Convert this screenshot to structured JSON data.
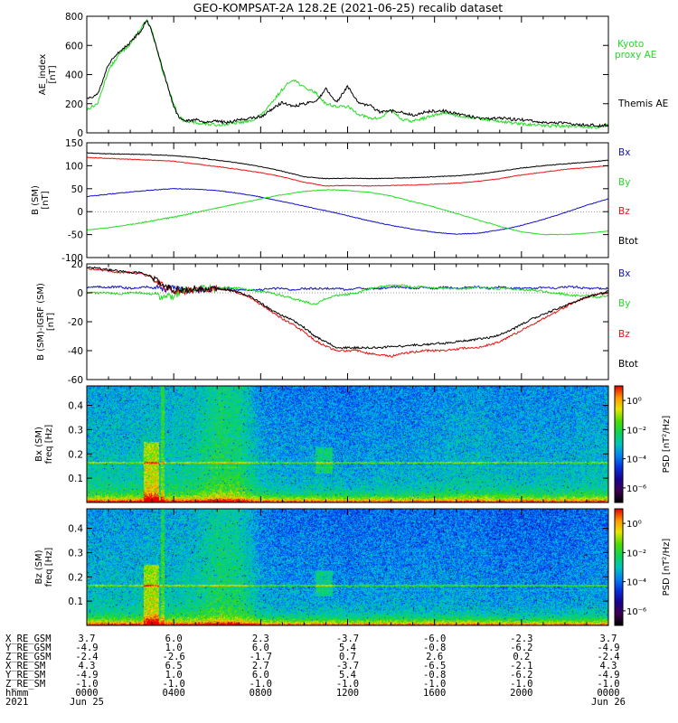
{
  "title": "GEO-KOMPSAT-2A 128.2E (2021-06-25) recalib dataset",
  "colors": {
    "black": "#000000",
    "green": "#22dd22",
    "blue": "#1111cc",
    "red": "#ee1111"
  },
  "chart_data": [
    {
      "type": "line",
      "ylabel": "AE_index\n[nT]",
      "ylim": [
        0,
        800
      ],
      "yticks": [
        "0",
        "200",
        "400",
        "600",
        "800"
      ],
      "x_hours": [
        0,
        0.5,
        1,
        1.5,
        2,
        2.5,
        2.75,
        3,
        3.5,
        4,
        4.25,
        4.5,
        5,
        5.5,
        6,
        6.5,
        7,
        7.5,
        8,
        8.5,
        9,
        9.5,
        10,
        10.5,
        11,
        11.5,
        12,
        12.5,
        13,
        13.5,
        14,
        14.5,
        15,
        15.5,
        16,
        16.5,
        17,
        17.5,
        18,
        18.5,
        19,
        19.5,
        20,
        20.5,
        21,
        21.5,
        22,
        22.5,
        23,
        23.5,
        24
      ],
      "series": [
        {
          "name": "Kyoto proxy AE",
          "color": "green",
          "values": [
            160,
            200,
            430,
            540,
            610,
            720,
            770,
            700,
            420,
            200,
            110,
            80,
            70,
            60,
            55,
            60,
            70,
            80,
            120,
            200,
            300,
            370,
            310,
            280,
            200,
            180,
            180,
            130,
            100,
            100,
            160,
            90,
            80,
            100,
            120,
            140,
            120,
            110,
            100,
            90,
            80,
            70,
            60,
            55,
            50,
            50,
            45,
            45,
            40,
            40,
            60
          ]
        },
        {
          "name": "Themis AE",
          "color": "black",
          "values": [
            240,
            260,
            470,
            560,
            620,
            700,
            780,
            690,
            430,
            180,
            100,
            80,
            90,
            70,
            80,
            70,
            90,
            100,
            110,
            160,
            210,
            180,
            200,
            210,
            300,
            210,
            320,
            200,
            190,
            140,
            150,
            140,
            120,
            140,
            150,
            150,
            130,
            120,
            100,
            100,
            100,
            95,
            90,
            80,
            70,
            70,
            65,
            60,
            55,
            50,
            55
          ]
        }
      ]
    },
    {
      "type": "line",
      "ylabel": "B (SM)\n[nT]",
      "ylim": [
        -100,
        150
      ],
      "yticks": [
        "-100",
        "-50",
        "0",
        "50",
        "100",
        "150"
      ],
      "x_hours": [
        0,
        1,
        2,
        3,
        4,
        5,
        6,
        7,
        8,
        9,
        10,
        11,
        12,
        13,
        14,
        15,
        16,
        17,
        18,
        19,
        20,
        21,
        22,
        23,
        24
      ],
      "series": [
        {
          "name": "Bx",
          "color": "blue",
          "values": [
            33,
            38,
            43,
            47,
            50,
            49,
            46,
            40,
            32,
            22,
            12,
            2,
            -9,
            -20,
            -30,
            -38,
            -45,
            -49,
            -47,
            -40,
            -30,
            -17,
            -2,
            14,
            28
          ]
        },
        {
          "name": "By",
          "color": "green",
          "values": [
            -40,
            -35,
            -28,
            -20,
            -12,
            -2,
            8,
            18,
            28,
            37,
            44,
            48,
            46,
            42,
            34,
            22,
            10,
            -4,
            -18,
            -32,
            -44,
            -50,
            -50,
            -47,
            -42
          ]
        },
        {
          "name": "Bz",
          "color": "red",
          "values": [
            118,
            116,
            114,
            112,
            110,
            104,
            98,
            92,
            85,
            76,
            64,
            56,
            57,
            56,
            57,
            58,
            60,
            62,
            66,
            72,
            80,
            86,
            92,
            96,
            100
          ]
        },
        {
          "name": "Btot",
          "color": "black",
          "values": [
            128,
            126,
            125,
            124,
            122,
            118,
            112,
            106,
            98,
            88,
            76,
            72,
            73,
            72,
            73,
            74,
            76,
            78,
            82,
            88,
            95,
            100,
            104,
            108,
            112
          ]
        }
      ]
    },
    {
      "type": "line",
      "ylabel": "B (SM)-IGRF (SM)\n[nT]",
      "ylim": [
        -60,
        20
      ],
      "yticks": [
        "-60",
        "-40",
        "-20",
        "0",
        "20"
      ],
      "x_hours": [
        0,
        0.5,
        1,
        1.5,
        2,
        2.5,
        3,
        3.5,
        4,
        4.5,
        5,
        5.5,
        6,
        6.5,
        7,
        7.5,
        8,
        8.5,
        9,
        9.5,
        10,
        10.5,
        11,
        11.5,
        12,
        12.5,
        13,
        13.5,
        14,
        14.5,
        15,
        15.5,
        16,
        16.5,
        17,
        17.5,
        18,
        18.5,
        19,
        19.5,
        20,
        20.5,
        21,
        21.5,
        22,
        22.5,
        23,
        23.5,
        24
      ],
      "series": [
        {
          "name": "Bx",
          "color": "blue",
          "values": [
            4,
            4,
            4,
            4,
            3,
            4,
            4,
            3,
            3,
            2,
            2,
            2,
            3,
            3,
            2,
            2,
            2,
            3,
            3,
            2,
            3,
            3,
            3,
            3,
            2,
            3,
            3,
            3,
            4,
            4,
            3,
            4,
            3,
            4,
            3,
            4,
            4,
            3,
            4,
            3,
            3,
            3,
            4,
            3,
            4,
            4,
            3,
            3,
            3
          ]
        },
        {
          "name": "By",
          "color": "green",
          "values": [
            0,
            0,
            0,
            -1,
            0,
            0,
            -1,
            -3,
            -2,
            2,
            3,
            3,
            3,
            4,
            3,
            2,
            1,
            0,
            -2,
            -4,
            -6,
            -8,
            -4,
            -2,
            -1,
            0,
            3,
            4,
            5,
            5,
            4,
            4,
            3,
            3,
            3,
            3,
            4,
            3,
            3,
            3,
            2,
            2,
            1,
            0,
            -1,
            -2,
            -2,
            -3,
            -2
          ]
        },
        {
          "name": "Bz",
          "color": "red",
          "values": [
            17,
            16,
            15,
            14,
            14,
            13,
            11,
            5,
            1,
            1,
            2,
            3,
            3,
            2,
            0,
            -3,
            -8,
            -13,
            -18,
            -22,
            -27,
            -33,
            -37,
            -40,
            -40,
            -40,
            -42,
            -43,
            -44,
            -42,
            -41,
            -40,
            -40,
            -40,
            -39,
            -38,
            -38,
            -36,
            -34,
            -30,
            -26,
            -22,
            -18,
            -14,
            -10,
            -6,
            -3,
            -1,
            0
          ]
        },
        {
          "name": "Btot",
          "color": "black",
          "values": [
            18,
            17,
            16,
            15,
            14,
            14,
            11,
            6,
            2,
            2,
            3,
            3,
            3,
            2,
            0,
            -2,
            -7,
            -12,
            -16,
            -19,
            -24,
            -30,
            -34,
            -38,
            -38,
            -38,
            -38,
            -38,
            -37,
            -37,
            -36,
            -36,
            -35,
            -35,
            -34,
            -33,
            -32,
            -31,
            -29,
            -26,
            -22,
            -18,
            -15,
            -12,
            -9,
            -6,
            -3,
            -1,
            1
          ]
        }
      ]
    },
    {
      "type": "heatmap",
      "ylabel": "Bx (SM)\nfreq [Hz]",
      "yticks": [
        "0.1",
        "0.2",
        "0.3",
        "0.4"
      ],
      "colorbar_label": "PSD [nT²/Hz]",
      "colorbar_ticks": [
        "10⁰",
        "10⁻²",
        "10⁻⁴",
        "10⁻⁶"
      ],
      "colorbar_log_range": [
        -7,
        1
      ],
      "activity_by_hour": [
        0.55,
        0.55,
        0.55,
        0.6,
        0.6,
        0.65,
        0.85,
        0.8,
        0.45,
        0.4,
        0.4,
        0.4,
        0.35,
        0.4,
        0.4,
        0.4,
        0.45,
        0.5,
        0.5,
        0.45,
        0.45,
        0.45,
        0.45,
        0.5,
        0.5
      ]
    },
    {
      "type": "heatmap",
      "ylabel": "Bz (SM)\nfreq [Hz]",
      "yticks": [
        "0.1",
        "0.2",
        "0.3",
        "0.4"
      ],
      "colorbar_label": "PSD [nT²/Hz]",
      "colorbar_ticks": [
        "10⁰",
        "10⁻²",
        "10⁻⁴",
        "10⁻⁶"
      ],
      "colorbar_log_range": [
        -7,
        1
      ],
      "activity_by_hour": [
        0.5,
        0.5,
        0.5,
        0.55,
        0.55,
        0.6,
        0.8,
        0.75,
        0.4,
        0.35,
        0.35,
        0.35,
        0.3,
        0.35,
        0.35,
        0.35,
        0.35,
        0.35,
        0.35,
        0.3,
        0.3,
        0.3,
        0.3,
        0.35,
        0.35
      ]
    }
  ],
  "panel_legends": [
    [
      "Kyoto proxy AE",
      "Themis AE"
    ],
    [
      "Bx",
      "By",
      "Bz",
      "Btot"
    ],
    [
      "Bx",
      "By",
      "Bz",
      "Btot"
    ]
  ],
  "footer": {
    "rows": [
      {
        "label": "X_RE_GSM",
        "values": [
          "3.7",
          "6.0",
          "2.3",
          "-3.7",
          "-6.0",
          "-2.3",
          "3.7"
        ]
      },
      {
        "label": "Y_RE_GSM",
        "values": [
          "-4.9",
          "1.0",
          "6.0",
          "5.4",
          "-0.8",
          "-6.2",
          "-4.9"
        ]
      },
      {
        "label": "Z_RE_GSM",
        "values": [
          "-2.4",
          "-2.6",
          "-1.7",
          "0.7",
          "2.6",
          "0.2",
          "-2.4"
        ]
      },
      {
        "label": "X_RE_SM",
        "values": [
          "4.3",
          "6.5",
          "2.7",
          "-3.7",
          "-6.5",
          "-2.1",
          "4.3"
        ]
      },
      {
        "label": "Y_RE_SM",
        "values": [
          "-4.9",
          "1.0",
          "6.0",
          "5.4",
          "-0.8",
          "-6.2",
          "-4.9"
        ]
      },
      {
        "label": "Z_RE_SM",
        "values": [
          "-1.0",
          "-1.0",
          "-1.0",
          "-1.0",
          "-1.0",
          "-1.0",
          "-1.0"
        ]
      },
      {
        "label": "hhmm",
        "values": [
          "0000",
          "0400",
          "0800",
          "1200",
          "1600",
          "2000",
          "0000"
        ]
      },
      {
        "label": "2021",
        "values": [
          "Jun 25",
          "",
          "",
          "",
          "",
          "",
          "Jun 26"
        ]
      }
    ]
  }
}
